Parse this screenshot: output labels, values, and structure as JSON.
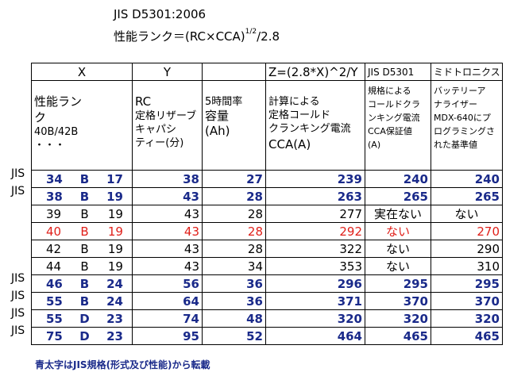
{
  "title_line1": "JIS D5301:2006",
  "title_line2_main": "性能ランク＝(RC×CCA)",
  "title_line2_sup": "1/2",
  "title_line2_tail": "/2.8",
  "header": {
    "col_x": "X",
    "col_y": "Y",
    "col_z": "Z=(2.8*X)^2/Y",
    "col_jis": "JIS D5301",
    "col_midori": "ミドトロニクス"
  },
  "desc": {
    "x_line1": "性能ラン",
    "x_line2": "ク",
    "x_line3": "40B/42B",
    "x_line4": "・・・",
    "y_line1": "RC",
    "y_line2": "定格リザーブ",
    "y_line3": "キャパシ",
    "y_line4": "ティー(分)",
    "ah_line1": "5時間率",
    "ah_line2": "容量",
    "ah_line3": "(Ah)",
    "z_line1": "計算による",
    "z_line2": "定格コールド",
    "z_line3": "クランキング電流",
    "z_line4": "CCA(A)",
    "jis_line1": "規格による",
    "jis_line2": "コールドクラ",
    "jis_line3": "ンキング電流",
    "jis_line4": "CCA保証値",
    "jis_line5": "(A)",
    "mid_line1": "バッテリーア",
    "mid_line2": "ナライザー",
    "mid_line3": "MDX-640にプ",
    "mid_line4": "ログラミングさ",
    "mid_line5": "れた基準値"
  },
  "rows": [
    {
      "side": "JIS",
      "rank": "34",
      "b": "B",
      "len": "17",
      "rc": "38",
      "ah": "27",
      "cca": "239",
      "jis": "240",
      "mid": "240",
      "style": "bold"
    },
    {
      "side": "JIS",
      "rank": "38",
      "b": "B",
      "len": "19",
      "rc": "43",
      "ah": "28",
      "cca": "263",
      "jis": "265",
      "mid": "265",
      "style": "bold"
    },
    {
      "side": "",
      "rank": "39",
      "b": "B",
      "len": "19",
      "rc": "43",
      "ah": "28",
      "cca": "277",
      "jis": "実在ない",
      "mid": "ない",
      "style": "normal"
    },
    {
      "side": "",
      "rank": "40",
      "b": "B",
      "len": "19",
      "rc": "43",
      "ah": "28",
      "cca": "292",
      "jis": "ない",
      "mid": "270",
      "style": "red"
    },
    {
      "side": "",
      "rank": "42",
      "b": "B",
      "len": "19",
      "rc": "43",
      "ah": "28",
      "cca": "322",
      "jis": "ない",
      "mid": "290",
      "style": "normal"
    },
    {
      "side": "",
      "rank": "44",
      "b": "B",
      "len": "19",
      "rc": "43",
      "ah": "34",
      "cca": "353",
      "jis": "ない",
      "mid": "310",
      "style": "normal"
    },
    {
      "side": "JIS",
      "rank": "46",
      "b": "B",
      "len": "24",
      "rc": "56",
      "ah": "36",
      "cca": "296",
      "jis": "295",
      "mid": "295",
      "style": "bold"
    },
    {
      "side": "JIS",
      "rank": "55",
      "b": "B",
      "len": "24",
      "rc": "64",
      "ah": "36",
      "cca": "371",
      "jis": "370",
      "mid": "370",
      "style": "bold"
    },
    {
      "side": "JIS",
      "rank": "55",
      "b": "D",
      "len": "23",
      "rc": "74",
      "ah": "48",
      "cca": "320",
      "jis": "320",
      "mid": "320",
      "style": "bold"
    },
    {
      "side": "JIS",
      "rank": "75",
      "b": "D",
      "len": "23",
      "rc": "95",
      "ah": "52",
      "cca": "464",
      "jis": "465",
      "mid": "465",
      "style": "bold"
    }
  ],
  "note": "青太字はJIS規格(形式及び性能)から転載",
  "colors": {
    "bold_blue": "#1a2a8a",
    "red": "#e0201a"
  }
}
